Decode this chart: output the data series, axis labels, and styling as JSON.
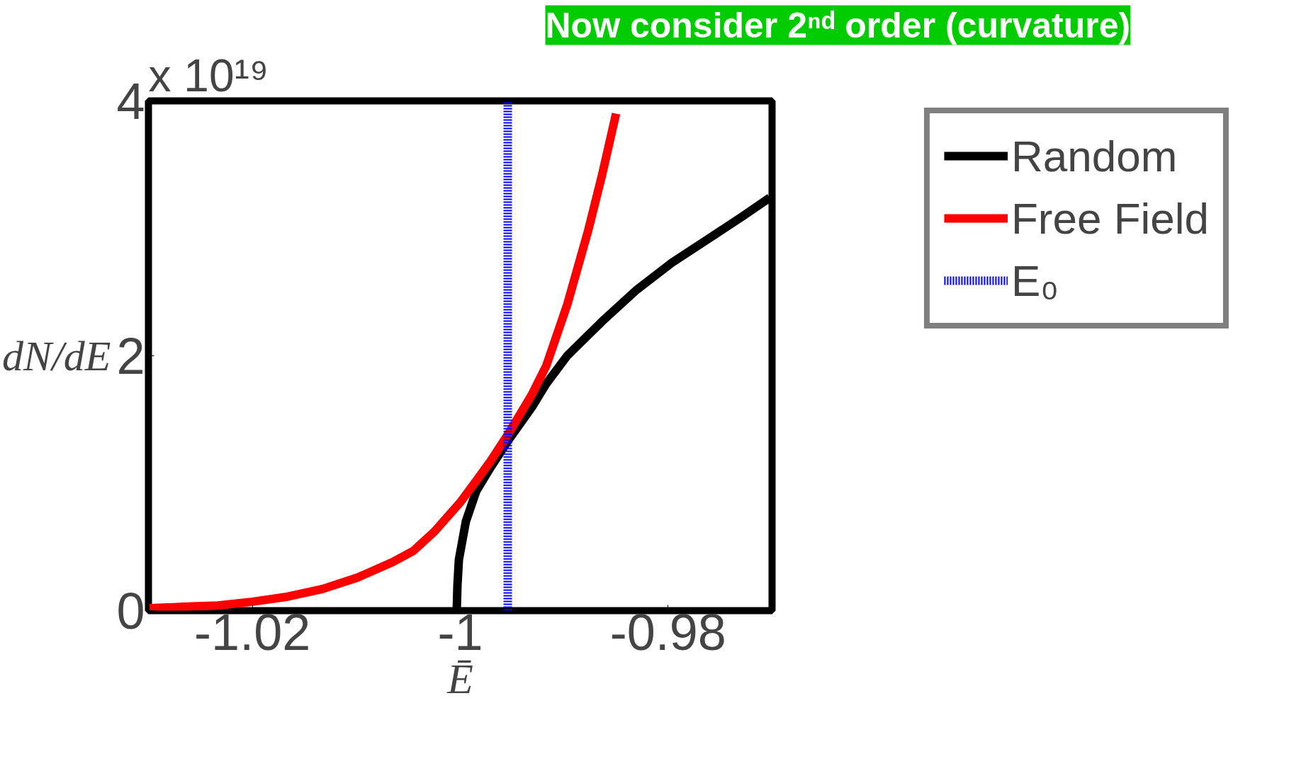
{
  "chart_data": {
    "type": "line",
    "xlabel": "Ē",
    "ylabel": "dN/dE",
    "annotations": [
      "x 10¹⁹",
      "Now consider 2ⁿᵈ order (curvature)"
    ],
    "xlim": [
      -1.03,
      -0.97
    ],
    "xticks": [
      -1.02,
      {
        "value": -1,
        "label": "-1"
      },
      -0.98
    ],
    "ylim": [
      0,
      4
    ],
    "yticks": [
      0,
      2,
      4
    ],
    "grid": false,
    "legend": "top right",
    "series": [
      {
        "name": "Random",
        "color": "#000000",
        "x": [
          -1.00034,
          -1.00027,
          -1.00013,
          -0.99946,
          -0.99845,
          -0.99711,
          -0.99543,
          -0.99308,
          -0.99173,
          -0.98971,
          -0.98635,
          -0.98299,
          -0.97963,
          -0.97627,
          -0.97291,
          -0.97022
        ],
        "values": [
          0,
          0.2,
          0.4,
          0.7,
          0.94,
          1.12,
          1.33,
          1.6,
          1.78,
          2.0,
          2.27,
          2.52,
          2.73,
          2.91,
          3.09,
          3.24
        ]
      },
      {
        "name": "Free Field",
        "color": "#ff0000",
        "x": [
          -1.0299,
          -1.02669,
          -1.02333,
          -1.01997,
          -1.0166,
          -1.01324,
          -1.00988,
          -1.00652,
          -1.0045,
          -1.00249,
          -1,
          -0.99845,
          -0.99711,
          -0.99543,
          -0.99308,
          -0.99173,
          -0.98971,
          -0.9877,
          -0.98635,
          -0.98501
        ],
        "values": [
          0.02,
          0.03,
          0.04,
          0.07,
          0.11,
          0.17,
          0.26,
          0.38,
          0.47,
          0.62,
          0.85,
          1.02,
          1.17,
          1.38,
          1.7,
          1.92,
          2.4,
          2.98,
          3.42,
          3.9
        ]
      },
      {
        "name": "E₀",
        "color": "#0000ff",
        "line_style": "dotted",
        "x": [
          -0.99543,
          -0.99543
        ],
        "values": [
          0,
          4
        ]
      }
    ]
  }
}
